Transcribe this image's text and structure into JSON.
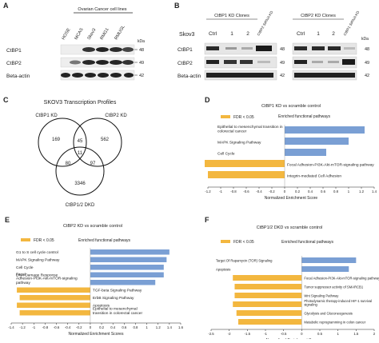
{
  "panelA": {
    "label": "A",
    "header": "Ovarian Cancer cell lines",
    "lanes": [
      "HOSE",
      "MCAS",
      "Skov3",
      "RMG1",
      "RMUGL"
    ],
    "kda": "kDa",
    "blots": [
      {
        "name": "CtBP1",
        "kda": "48"
      },
      {
        "name": "CtBP2",
        "kda": "49"
      },
      {
        "name": "Beta-actin",
        "kda": "42"
      }
    ]
  },
  "panelB": {
    "label": "B",
    "cell_line": "Skov3",
    "group1": {
      "title": "CtBP1 KD Clones",
      "lanes": [
        "Ctrl",
        "1",
        "2",
        "CtBP2 SiRNA KD"
      ]
    },
    "group2": {
      "title": "CtBP2 KD Clones",
      "lanes": [
        "Ctrl",
        "1",
        "2",
        "CtBP1 SiRNA KD"
      ]
    },
    "kda": "kDa",
    "blots": [
      {
        "name": "CtBP1",
        "kda": "48"
      },
      {
        "name": "CtBP2",
        "kda": "49"
      },
      {
        "name": "Beta-actin",
        "kda": "42"
      }
    ]
  },
  "panelC": {
    "label": "C",
    "title": "SKOV3 Transcription Profiles",
    "set1": "CtBP1 KD",
    "set2": "CtBP2 KD",
    "set3": "CtBP1/2  DKD",
    "counts": {
      "only1": "169",
      "only2": "562",
      "only3": "3346",
      "n12": "45",
      "n13": "80",
      "n23": "97",
      "n123": "11"
    }
  },
  "chart_data": [
    {
      "panel": "D",
      "type": "bar",
      "orientation": "horizontal",
      "title": "CtBP1 KD vs scramble control",
      "legend": [
        {
          "label": "FDR < 0.05",
          "color": "#f3b73f"
        },
        {
          "label": "Enriched functional pathways",
          "color": "#7a9fd4"
        }
      ],
      "categories": [
        "Epithelial to mesenchymal transition in colorectal cancer",
        "MAPK Signaling Pathway",
        "Cell Cycle",
        "Focal Adhesion-PI3K-Akt-mTOR-signaling pathway",
        "Integrin-mediated Cell Adhesion"
      ],
      "values": [
        1.25,
        1.0,
        0.65,
        -1.25,
        -1.2
      ],
      "fdr_significant": [
        false,
        false,
        false,
        true,
        true
      ],
      "xlabel": "Normalized Enrichment Score",
      "xticks": [
        "-1.2",
        "-1",
        "-0.8",
        "-0.6",
        "-0.4",
        "-0.2",
        "0",
        "0.2",
        "0.4",
        "0.6",
        "0.8",
        "1",
        "1.2",
        "1.4"
      ],
      "xlim": [
        -1.2,
        1.4
      ]
    },
    {
      "panel": "E",
      "type": "bar",
      "orientation": "horizontal",
      "title": "CtBP2 KD vs scramble control",
      "legend": [
        {
          "label": "FDR < 0.05",
          "color": "#f3b73f"
        },
        {
          "label": "Enriched functional pathways",
          "color": "#7a9fd4"
        }
      ],
      "categories": [
        "G1 to S cell cycle control",
        "MAPK Signaling Pathway",
        "Cell Cycle",
        "DNA Damage Response",
        "Focal Adhesion-PI3K-Akt-mTOR-signaling pathway",
        "TGF-beta Signaling Pathway",
        "ErbB Signaling Pathway",
        "Apoptosis",
        "Epithelial to mesenchymal transition in colorectal cancer"
      ],
      "values": [
        1.4,
        1.35,
        1.3,
        1.3,
        1.15,
        -1.3,
        -1.25,
        -1.3,
        -1.25
      ],
      "fdr_significant": [
        false,
        false,
        false,
        false,
        false,
        true,
        true,
        true,
        true
      ],
      "xlabel": "Normalized Enrichment Scores",
      "xticks": [
        "-1.4",
        "-1.2",
        "-1",
        "-0.8",
        "-0.6",
        "-0.4",
        "-0.2",
        "0",
        "0.2",
        "0.4",
        "0.6",
        "0.8",
        "1",
        "1.2",
        "1.4",
        "1.6"
      ],
      "xlim": [
        -1.4,
        1.6
      ]
    },
    {
      "panel": "F",
      "type": "bar",
      "orientation": "horizontal",
      "title": "CtBP1/2 DKD vs scramble control",
      "legend": [
        {
          "label": "FDR < 0.05",
          "color": "#f3b73f"
        },
        {
          "label": "Enriched functional pathways",
          "color": "#7a9fd4"
        }
      ],
      "categories": [
        "Target Of Rapamycin (TOR) Signaling",
        "Apoptosis",
        "Focal Adhesion-PI3K-Akt-mTOR-signaling pathway",
        "Tumor suppressor activity of SMARCB1",
        "Wnt Signaling Pathway",
        "Photodynamic therapy-induced HIF-1 survival signaling",
        "Glycolysis and Gluconeogenesis",
        "Metabolic reprogramming in colon cancer"
      ],
      "values": [
        1.5,
        1.3,
        -1.9,
        -1.85,
        -1.85,
        -1.9,
        -1.8,
        -1.75
      ],
      "fdr_significant": [
        false,
        false,
        true,
        true,
        true,
        true,
        true,
        true
      ],
      "xlabel": "Normalized Enrichment Score",
      "xticks": [
        "-2.5",
        "-2",
        "-1.5",
        "-1",
        "-0.5",
        "0",
        "0.5",
        "1",
        "1.5",
        "2"
      ],
      "xlim": [
        -2.5,
        2
      ]
    }
  ]
}
